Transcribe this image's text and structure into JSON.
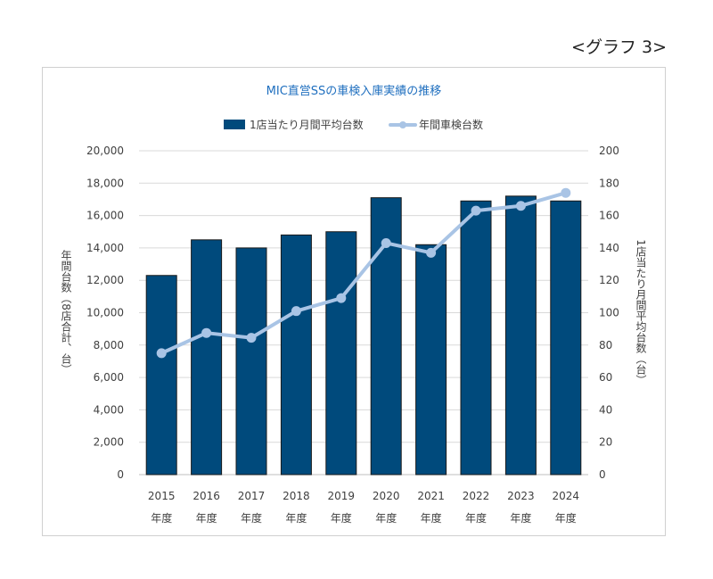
{
  "figure_label": "<グラフ 3>",
  "chart_data": {
    "type": "bar+line",
    "title": "MIC直営SSの車検入庫実績の推移",
    "categories": [
      "2015",
      "2016",
      "2017",
      "2018",
      "2019",
      "2020",
      "2021",
      "2022",
      "2023",
      "2024"
    ],
    "category_suffix": "年度",
    "series": [
      {
        "name": "1店当たり月間平均台数",
        "type": "bar",
        "axis": "right",
        "color": "#004a7c",
        "values": [
          123,
          145,
          140,
          148,
          150,
          171,
          142,
          169,
          172,
          169
        ]
      },
      {
        "name": "年間車検台数",
        "type": "line",
        "axis": "left",
        "color": "#a9c4e5",
        "values": [
          7500,
          8750,
          8450,
          10100,
          10900,
          14300,
          13700,
          16300,
          16600,
          17400
        ]
      }
    ],
    "y_left": {
      "label": "年間台数（8店合計、台）",
      "range": [
        0,
        20000
      ],
      "ticks": [
        "0",
        "2,000",
        "4,000",
        "6,000",
        "8,000",
        "10,000",
        "12,000",
        "14,000",
        "16,000",
        "18,000",
        "20,000"
      ]
    },
    "y_right": {
      "label": "1店当たり月間平均台数（台）",
      "range": [
        0,
        200
      ],
      "ticks": [
        "0",
        "20",
        "40",
        "60",
        "80",
        "100",
        "120",
        "140",
        "160",
        "180",
        "200"
      ]
    },
    "grid": true,
    "legend_position": "top-center"
  }
}
